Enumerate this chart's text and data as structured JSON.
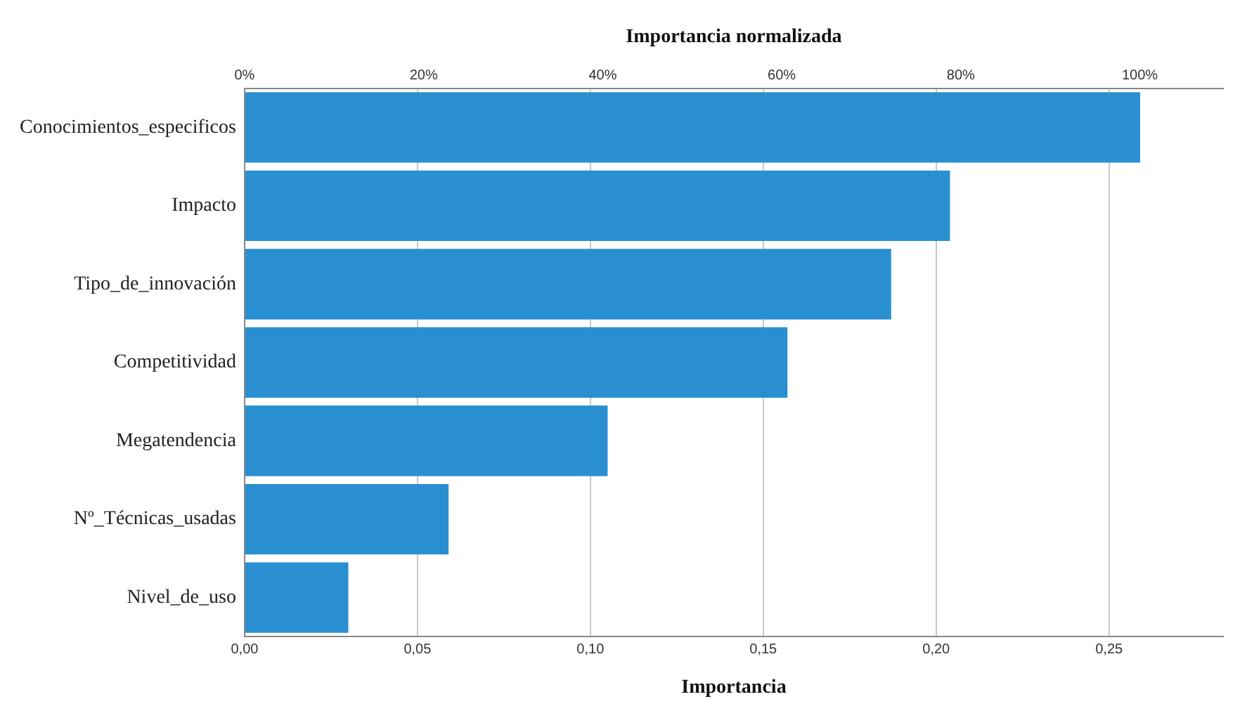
{
  "chart_data": {
    "type": "bar",
    "orientation": "horizontal",
    "xlabel": "Importancia",
    "x2label": "Importancia normalizada",
    "categories": [
      "Conocimientos_especificos",
      "Impacto",
      "Tipo_de_innovación",
      "Competitividad",
      "Megatendencia",
      "Nº_Técnicas_usadas",
      "Nivel_de_uso"
    ],
    "values": [
      0.259,
      0.204,
      0.187,
      0.157,
      0.105,
      0.059,
      0.03
    ],
    "color": "#2a8fd0",
    "xlim": [
      0,
      0.283
    ],
    "xticks": [
      {
        "value": 0,
        "label": "0,00"
      },
      {
        "value": 0.05,
        "label": "0,05"
      },
      {
        "value": 0.1,
        "label": "0,10"
      },
      {
        "value": 0.15,
        "label": "0,15"
      },
      {
        "value": 0.2,
        "label": "0,20"
      },
      {
        "value": 0.25,
        "label": "0,25"
      }
    ],
    "x2lim": [
      0,
      109.3
    ],
    "x2ticks": [
      {
        "value": 0,
        "label": "0%"
      },
      {
        "value": 20,
        "label": "20%"
      },
      {
        "value": 40,
        "label": "40%"
      },
      {
        "value": 60,
        "label": "60%"
      },
      {
        "value": 80,
        "label": "80%"
      },
      {
        "value": 100,
        "label": "100%"
      }
    ],
    "grid": "x",
    "legend": false
  }
}
